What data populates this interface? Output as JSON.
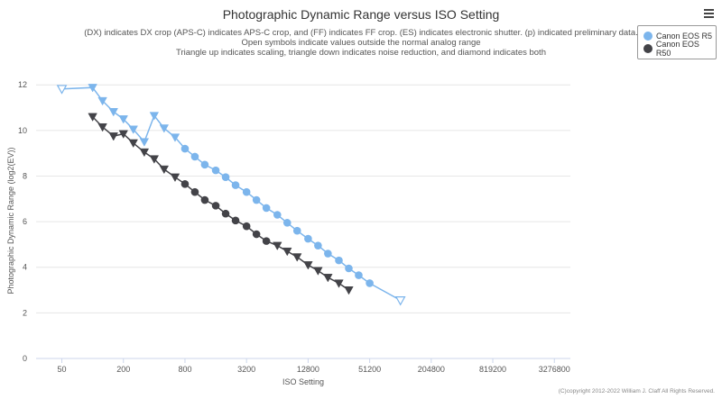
{
  "chart_data": {
    "type": "line",
    "title": "Photographic Dynamic Range versus ISO Setting",
    "subtitle": [
      "(DX) indicates DX crop (APS-C) indicates APS-C crop, and (FF) indicates FF crop. (ES) indicates electronic shutter. (p) indicated preliminary data.",
      "Open symbols indicate values outside the normal analog range",
      "Triangle up indicates scaling, triangle down indicates noise reduction, and diamond indicates both"
    ],
    "xlabel": "ISO Setting",
    "ylabel": "Photographic Dynamic Range (log2(EV))",
    "x_scale": "log2",
    "x_ticks": [
      50,
      200,
      800,
      3200,
      12800,
      51200,
      204800,
      819200,
      3276800
    ],
    "y_ticks": [
      0,
      2,
      4,
      6,
      8,
      10,
      12
    ],
    "xlim": [
      28,
      4700000
    ],
    "ylim": [
      0,
      12.6
    ],
    "grid": true,
    "legend_position": "top-right",
    "series": [
      {
        "name": "Canon EOS R5",
        "color": "#7cb5ec",
        "points": [
          {
            "x": 50,
            "y": 11.82,
            "marker": "triangle-down-open"
          },
          {
            "x": 100,
            "y": 11.88,
            "marker": "triangle-down"
          },
          {
            "x": 125,
            "y": 11.3,
            "marker": "triangle-down"
          },
          {
            "x": 160,
            "y": 10.82,
            "marker": "triangle-down"
          },
          {
            "x": 200,
            "y": 10.5,
            "marker": "triangle-down"
          },
          {
            "x": 250,
            "y": 10.05,
            "marker": "triangle-down"
          },
          {
            "x": 320,
            "y": 9.5,
            "marker": "triangle-down"
          },
          {
            "x": 400,
            "y": 10.65,
            "marker": "triangle-down"
          },
          {
            "x": 500,
            "y": 10.1,
            "marker": "triangle-down"
          },
          {
            "x": 640,
            "y": 9.7,
            "marker": "triangle-down"
          },
          {
            "x": 800,
            "y": 9.2,
            "marker": "circle"
          },
          {
            "x": 1000,
            "y": 8.85,
            "marker": "circle"
          },
          {
            "x": 1250,
            "y": 8.5,
            "marker": "circle"
          },
          {
            "x": 1600,
            "y": 8.25,
            "marker": "circle"
          },
          {
            "x": 2000,
            "y": 7.95,
            "marker": "circle"
          },
          {
            "x": 2500,
            "y": 7.6,
            "marker": "circle"
          },
          {
            "x": 3200,
            "y": 7.3,
            "marker": "circle"
          },
          {
            "x": 4000,
            "y": 6.95,
            "marker": "circle"
          },
          {
            "x": 5000,
            "y": 6.6,
            "marker": "circle"
          },
          {
            "x": 6400,
            "y": 6.3,
            "marker": "circle"
          },
          {
            "x": 8000,
            "y": 5.95,
            "marker": "circle"
          },
          {
            "x": 10000,
            "y": 5.6,
            "marker": "circle"
          },
          {
            "x": 12800,
            "y": 5.25,
            "marker": "circle"
          },
          {
            "x": 16000,
            "y": 4.95,
            "marker": "circle"
          },
          {
            "x": 20000,
            "y": 4.6,
            "marker": "circle"
          },
          {
            "x": 25600,
            "y": 4.3,
            "marker": "circle"
          },
          {
            "x": 32000,
            "y": 3.95,
            "marker": "circle"
          },
          {
            "x": 40000,
            "y": 3.65,
            "marker": "circle"
          },
          {
            "x": 51200,
            "y": 3.3,
            "marker": "circle"
          },
          {
            "x": 102400,
            "y": 2.55,
            "marker": "triangle-down-open"
          }
        ]
      },
      {
        "name": "Canon EOS R50",
        "color": "#434348",
        "points": [
          {
            "x": 100,
            "y": 10.6,
            "marker": "triangle-down"
          },
          {
            "x": 125,
            "y": 10.15,
            "marker": "triangle-down"
          },
          {
            "x": 160,
            "y": 9.75,
            "marker": "triangle-down"
          },
          {
            "x": 200,
            "y": 9.85,
            "marker": "triangle-down"
          },
          {
            "x": 250,
            "y": 9.45,
            "marker": "triangle-down"
          },
          {
            "x": 320,
            "y": 9.05,
            "marker": "triangle-down"
          },
          {
            "x": 400,
            "y": 8.75,
            "marker": "triangle-down"
          },
          {
            "x": 500,
            "y": 8.3,
            "marker": "triangle-down"
          },
          {
            "x": 640,
            "y": 7.95,
            "marker": "triangle-down"
          },
          {
            "x": 800,
            "y": 7.65,
            "marker": "circle"
          },
          {
            "x": 1000,
            "y": 7.3,
            "marker": "circle"
          },
          {
            "x": 1250,
            "y": 6.95,
            "marker": "circle"
          },
          {
            "x": 1600,
            "y": 6.7,
            "marker": "circle"
          },
          {
            "x": 2000,
            "y": 6.35,
            "marker": "circle"
          },
          {
            "x": 2500,
            "y": 6.05,
            "marker": "circle"
          },
          {
            "x": 3200,
            "y": 5.8,
            "marker": "circle"
          },
          {
            "x": 4000,
            "y": 5.45,
            "marker": "circle"
          },
          {
            "x": 5000,
            "y": 5.15,
            "marker": "circle"
          },
          {
            "x": 6400,
            "y": 4.95,
            "marker": "triangle-down"
          },
          {
            "x": 8000,
            "y": 4.7,
            "marker": "triangle-down"
          },
          {
            "x": 10000,
            "y": 4.45,
            "marker": "triangle-down"
          },
          {
            "x": 12800,
            "y": 4.1,
            "marker": "triangle-down"
          },
          {
            "x": 16000,
            "y": 3.85,
            "marker": "triangle-down"
          },
          {
            "x": 20000,
            "y": 3.55,
            "marker": "triangle-down"
          },
          {
            "x": 25600,
            "y": 3.3,
            "marker": "triangle-down"
          },
          {
            "x": 32000,
            "y": 3.0,
            "marker": "triangle-down"
          }
        ]
      }
    ]
  },
  "legend": {
    "items": [
      "Canon EOS R5",
      "Canon EOS R50"
    ]
  },
  "menu": {
    "icon": "hamburger-menu-icon"
  },
  "credits": "(C)copyright 2012-2022 William J. Claff All Rights Reserved."
}
